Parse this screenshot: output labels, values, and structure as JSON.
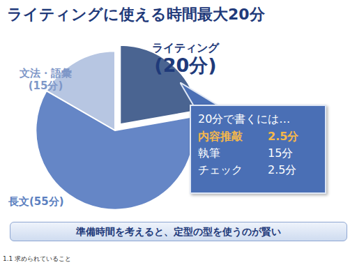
{
  "chart_data": {
    "type": "pie",
    "title": "ライティングに使える時間最大20分",
    "categories": [
      "ライティング",
      "長文",
      "文法・語彙"
    ],
    "values": [
      20,
      55,
      15
    ],
    "value_labels": [
      "(20分)",
      "(55分)",
      "(15分)"
    ],
    "data_labels": true,
    "colors": [
      "#4a6491",
      "#6586c6",
      "#b7c6e2"
    ]
  },
  "callout": {
    "title": "20分で書くには…",
    "items": [
      {
        "label": "内容推敲",
        "time": "2.5分",
        "highlight": true
      },
      {
        "label": "執筆",
        "time": "15分",
        "highlight": false
      },
      {
        "label": "チェック",
        "time": "2.5分",
        "highlight": false
      }
    ]
  },
  "conclusion": "準備時間を考えると、定型の型を使うのが賢い",
  "footer": "1.1 求められていること"
}
